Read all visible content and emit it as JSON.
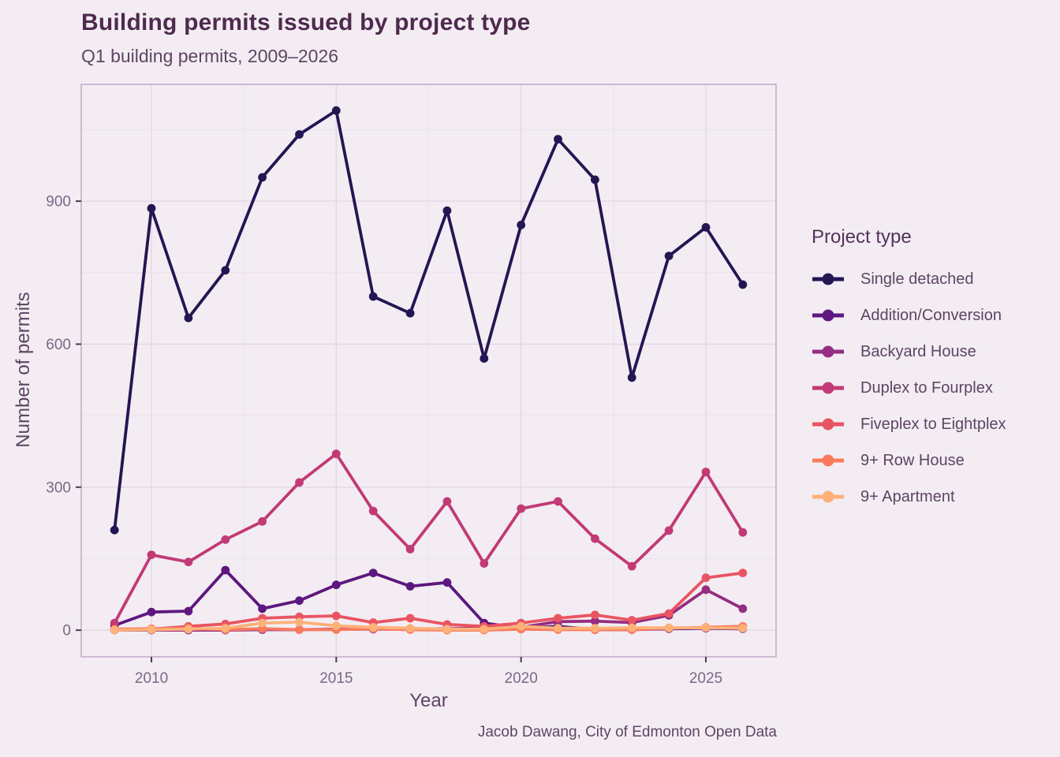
{
  "chart_data": {
    "type": "line",
    "title": "Building permits issued by project type",
    "subtitle": "Q1 building permits, 2009–2026",
    "caption": "Jacob Dawang, City of Edmonton Open Data",
    "xlabel": "Year",
    "ylabel": "Number of permits",
    "legend_title": "Project type",
    "legend_position": "right",
    "grid": true,
    "background_color": "#f3edf3",
    "x": [
      2009,
      2010,
      2011,
      2012,
      2013,
      2014,
      2015,
      2016,
      2017,
      2018,
      2019,
      2020,
      2021,
      2022,
      2023,
      2024,
      2025,
      2026
    ],
    "xlim": [
      2008.1,
      2026.9
    ],
    "ylim": [
      -56,
      1145
    ],
    "x_ticks": {
      "labels": [
        "2010",
        "2015",
        "2020",
        "2025"
      ],
      "values": [
        2010,
        2015,
        2020,
        2025
      ],
      "minor": [
        2012.5,
        2017.5,
        2022.5
      ]
    },
    "y_ticks": {
      "labels": [
        "0",
        "300",
        "600",
        "900"
      ],
      "values": [
        0,
        300,
        600,
        900
      ],
      "minor": [
        150,
        450,
        750,
        1050
      ]
    },
    "series": [
      {
        "name": "Single detached",
        "color": "#251552",
        "values": [
          210,
          885,
          655,
          755,
          950,
          1040,
          1090,
          700,
          665,
          880,
          570,
          850,
          1030,
          945,
          530,
          785,
          845,
          725
        ]
      },
      {
        "name": "Addition/Conversion",
        "color": "#5e177f",
        "values": [
          10,
          38,
          40,
          126,
          45,
          62,
          95,
          120,
          92,
          100,
          15,
          4,
          8,
          1,
          1,
          3,
          4,
          3
        ]
      },
      {
        "name": "Backyard House",
        "color": "#962d80",
        "values": [
          0,
          0,
          0,
          0,
          1,
          1,
          2,
          2,
          2,
          3,
          4,
          6,
          18,
          19,
          16,
          31,
          85,
          45
        ]
      },
      {
        "name": "Duplex to Fourplex",
        "color": "#c23a75",
        "values": [
          15,
          158,
          143,
          190,
          228,
          310,
          370,
          250,
          170,
          270,
          140,
          255,
          270,
          192,
          134,
          209,
          332,
          205
        ]
      },
      {
        "name": "Fiveplex to Eightplex",
        "color": "#e95462",
        "values": [
          1,
          2,
          8,
          13,
          25,
          28,
          30,
          16,
          25,
          12,
          8,
          15,
          25,
          32,
          21,
          35,
          110,
          120
        ]
      },
      {
        "name": "9+ Row House",
        "color": "#f97b5e",
        "values": [
          2,
          3,
          4,
          1,
          3,
          1,
          1,
          3,
          1,
          0,
          0,
          2,
          1,
          1,
          1,
          4,
          6,
          8
        ]
      },
      {
        "name": "9+ Apartment",
        "color": "#fdb179",
        "values": [
          0,
          1,
          2,
          4,
          15,
          17,
          9,
          6,
          4,
          2,
          2,
          8,
          4,
          4,
          5,
          5,
          5,
          4
        ]
      }
    ]
  },
  "style": {
    "grid_major_color": "#e2d6e2",
    "grid_minor_color": "#eae0ea",
    "panel_border_color": "#bb9fc0",
    "tick_mark_color": "#4e3657"
  }
}
